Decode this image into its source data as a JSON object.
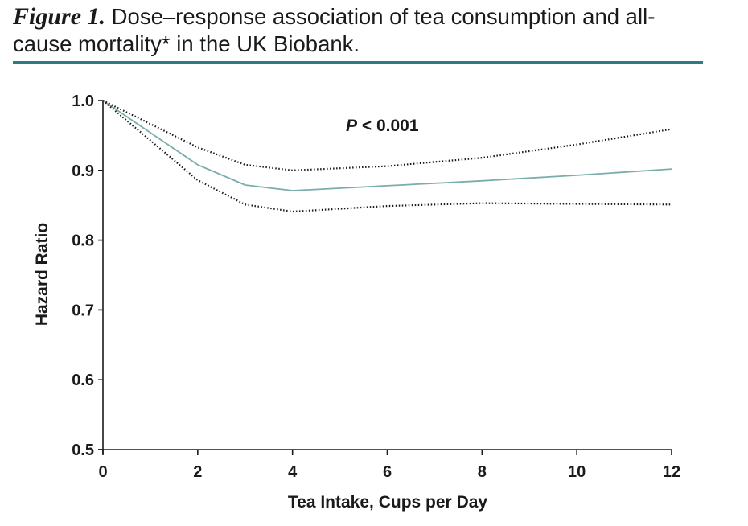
{
  "figure": {
    "label": "Figure 1.",
    "caption": " Dose–response association of tea consumption and all-cause mortality* in the UK Biobank."
  },
  "colors": {
    "accent_rule": "#2e7b83",
    "estimate_line": "#7aaeaa",
    "ci_line": "#1a1a1a"
  },
  "chart_data": {
    "type": "line",
    "title": "",
    "xlabel": "Tea Intake, Cups per Day",
    "ylabel": "Hazard Ratio",
    "xlim": [
      0,
      12
    ],
    "ylim": [
      0.5,
      1.0
    ],
    "xticks": [
      0,
      2,
      4,
      6,
      8,
      10,
      12
    ],
    "yticks": [
      0.5,
      0.6,
      0.7,
      0.8,
      0.9,
      1.0
    ],
    "xtick_labels": [
      "0",
      "2",
      "4",
      "6",
      "8",
      "10",
      "12"
    ],
    "ytick_labels": [
      "0.5",
      "0.6",
      "0.7",
      "0.8",
      "0.9",
      "1.0"
    ],
    "grid": false,
    "annotation": {
      "p_symbol": "P",
      "p_rest": " < 0.001"
    },
    "series": [
      {
        "role": "estimate",
        "style": "solid",
        "x": [
          0,
          2,
          3,
          4,
          6,
          8,
          10,
          12
        ],
        "y": [
          1.0,
          0.908,
          0.879,
          0.871,
          0.878,
          0.885,
          0.893,
          0.902
        ]
      },
      {
        "role": "upper",
        "style": "dotted",
        "x": [
          0,
          2,
          3,
          4,
          6,
          8,
          10,
          12
        ],
        "y": [
          1.0,
          0.933,
          0.908,
          0.9,
          0.906,
          0.918,
          0.937,
          0.959
        ]
      },
      {
        "role": "lower",
        "style": "dotted",
        "x": [
          0,
          2,
          3,
          4,
          6,
          8,
          10,
          12
        ],
        "y": [
          1.0,
          0.886,
          0.851,
          0.841,
          0.849,
          0.853,
          0.852,
          0.851
        ]
      }
    ]
  }
}
